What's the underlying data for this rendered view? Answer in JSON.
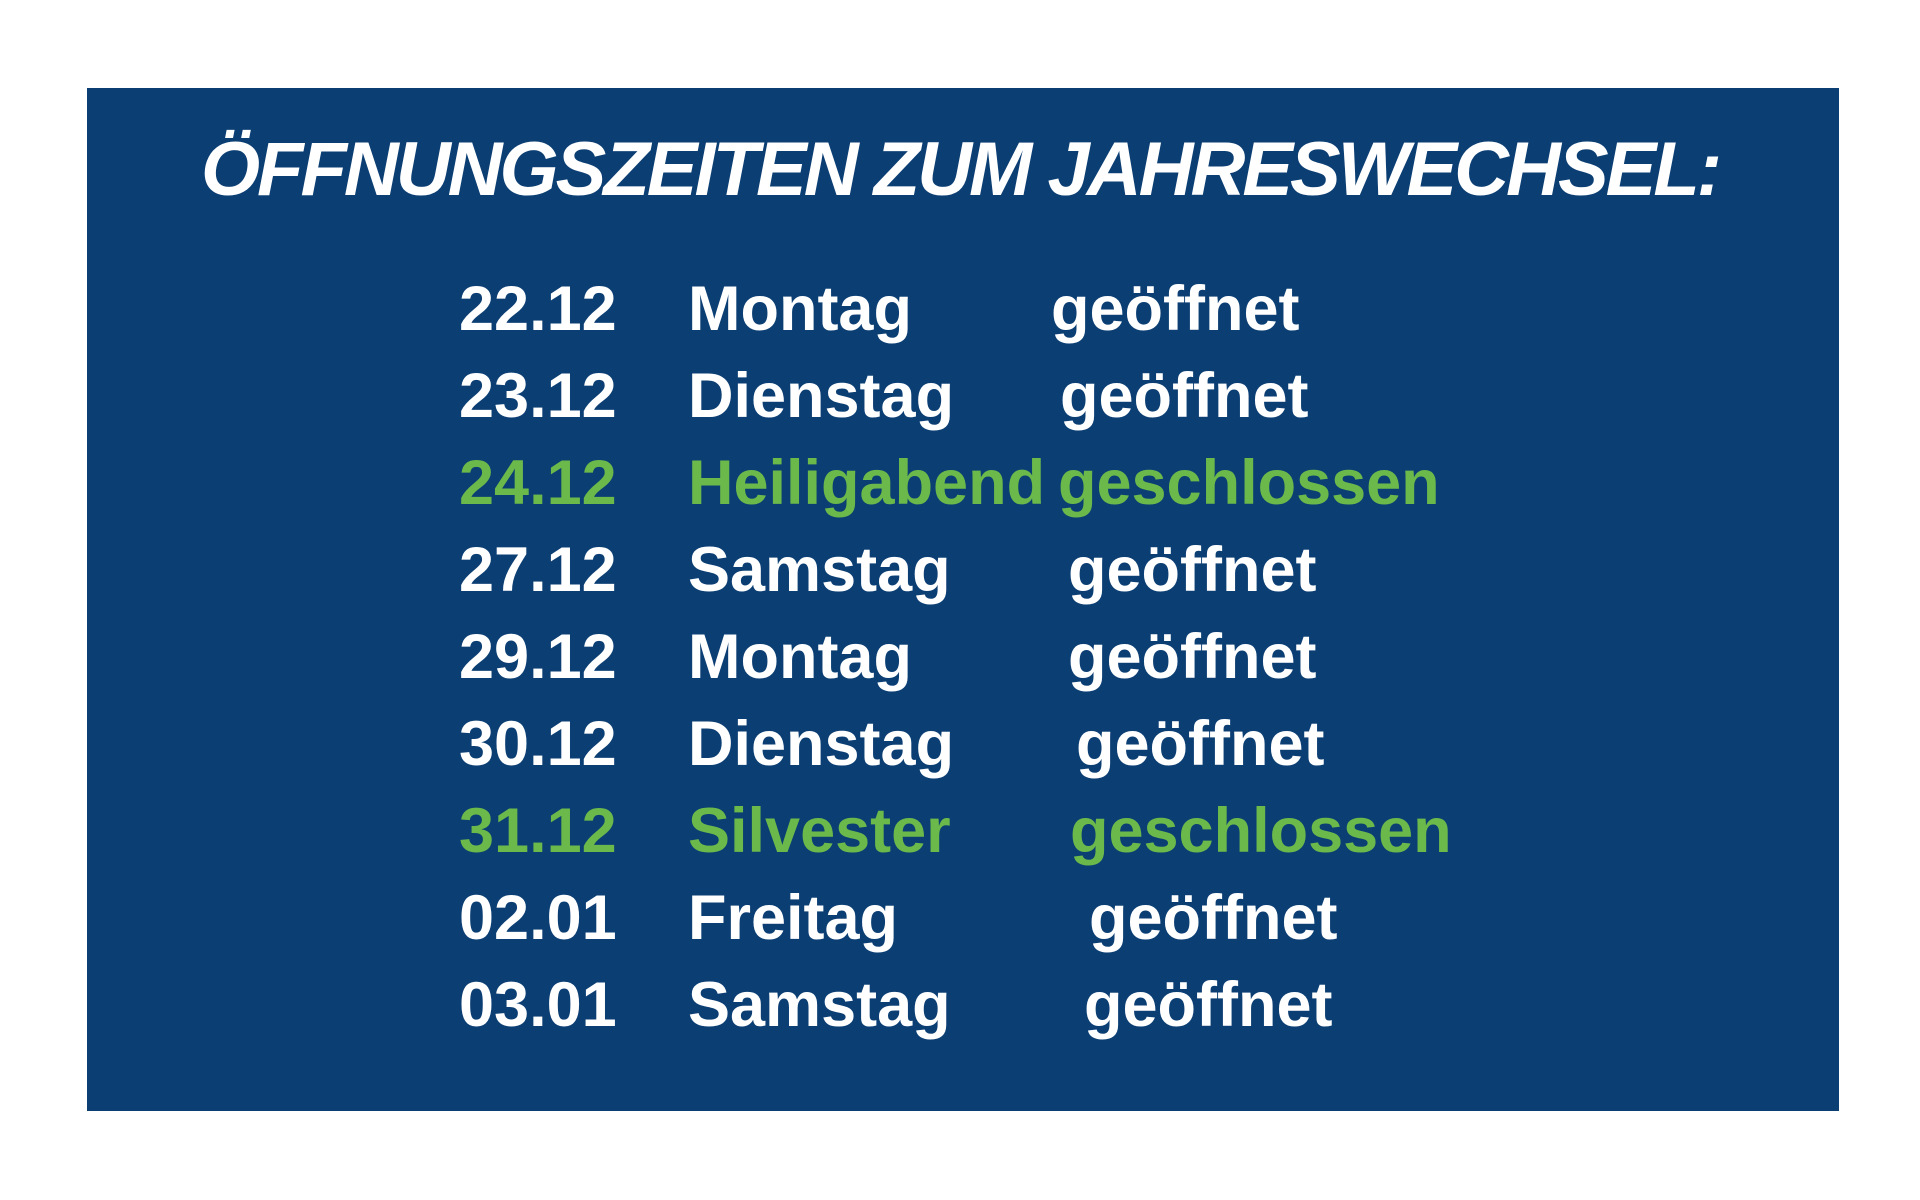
{
  "title": "ÖFFNUNGSZEITEN ZUM JAHRESWECHSEL:",
  "colors": {
    "background": "#0b3e73",
    "text": "#ffffff",
    "closed": "#6cb94b"
  },
  "rows": [
    {
      "date": "22.12",
      "day": "Montag",
      "status": "geöffnet",
      "closed": false
    },
    {
      "date": "23.12",
      "day": "Dienstag",
      "status": "geöffnet",
      "closed": false
    },
    {
      "date": "24.12",
      "day": "Heiligabend",
      "status": "geschlossen",
      "closed": true
    },
    {
      "date": "27.12",
      "day": "Samstag",
      "status": "geöffnet",
      "closed": false
    },
    {
      "date": "29.12",
      "day": "Montag",
      "status": "geöffnet",
      "closed": false
    },
    {
      "date": "30.12",
      "day": "Dienstag",
      "status": "geöffnet",
      "closed": false
    },
    {
      "date": "31.12",
      "day": "Silvester",
      "status": "geschlossen",
      "closed": true
    },
    {
      "date": "02.01",
      "day": "Freitag",
      "status": "geöffnet",
      "closed": false
    },
    {
      "date": "03.01",
      "day": "Samstag",
      "status": "geöffnet",
      "closed": false
    }
  ]
}
